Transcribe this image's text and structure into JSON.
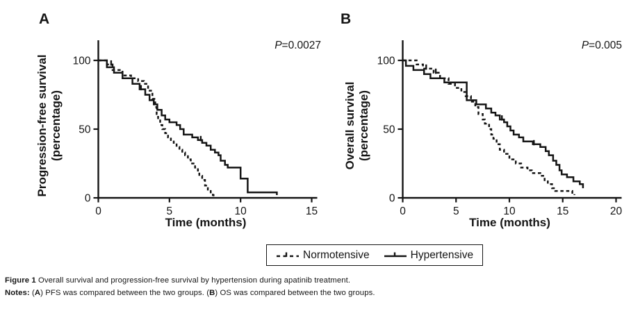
{
  "figure": {
    "panels": [
      {
        "label": "A"
      },
      {
        "label": "B"
      }
    ]
  },
  "chart_data": [
    {
      "type": "line",
      "subtype": "kaplan-meier-step",
      "panel_label": "A",
      "pvalue": {
        "prefix": "P",
        "value": "=0.0027"
      },
      "xlabel": "Time (months)",
      "ylabel_lines": [
        "Progression-free survival",
        "(percentage)"
      ],
      "xlim": [
        0,
        15
      ],
      "ylim": [
        0,
        100
      ],
      "xticks": [
        0,
        5,
        10,
        15
      ],
      "yticks": [
        0,
        50,
        100
      ],
      "grid": false,
      "series": [
        {
          "name": "Normotensive",
          "style": "dashed",
          "points": [
            [
              0,
              100
            ],
            [
              0.6,
              97
            ],
            [
              1.0,
              93
            ],
            [
              1.7,
              89
            ],
            [
              2.3,
              87
            ],
            [
              2.8,
              85
            ],
            [
              3.2,
              83
            ],
            [
              3.5,
              78
            ],
            [
              3.8,
              72
            ],
            [
              4.0,
              66
            ],
            [
              4.1,
              61
            ],
            [
              4.2,
              57
            ],
            [
              4.35,
              53
            ],
            [
              4.5,
              50
            ],
            [
              4.7,
              47
            ],
            [
              4.9,
              44
            ],
            [
              5.1,
              42
            ],
            [
              5.3,
              40
            ],
            [
              5.5,
              37
            ],
            [
              5.7,
              35
            ],
            [
              5.9,
              33
            ],
            [
              6.1,
              31
            ],
            [
              6.3,
              28
            ],
            [
              6.5,
              25
            ],
            [
              6.8,
              22
            ],
            [
              7.0,
              19
            ],
            [
              7.1,
              16
            ],
            [
              7.3,
              13
            ],
            [
              7.5,
              9
            ],
            [
              7.7,
              6
            ],
            [
              7.9,
              4
            ],
            [
              8.05,
              2
            ],
            [
              8.1,
              0
            ]
          ],
          "censor_ticks": [
            0.9
          ]
        },
        {
          "name": "Hypertensive",
          "style": "solid",
          "points": [
            [
              0,
              100
            ],
            [
              0.6,
              95
            ],
            [
              1.1,
              91
            ],
            [
              1.7,
              87
            ],
            [
              2.4,
              83
            ],
            [
              2.9,
              79
            ],
            [
              3.3,
              75
            ],
            [
              3.6,
              71
            ],
            [
              3.9,
              68
            ],
            [
              4.15,
              64
            ],
            [
              4.45,
              60
            ],
            [
              4.7,
              57
            ],
            [
              5.0,
              55
            ],
            [
              5.5,
              53
            ],
            [
              5.75,
              50
            ],
            [
              6.0,
              46
            ],
            [
              6.6,
              44
            ],
            [
              7.0,
              42
            ],
            [
              7.3,
              40
            ],
            [
              7.6,
              38
            ],
            [
              7.9,
              35
            ],
            [
              8.2,
              33
            ],
            [
              8.45,
              31
            ],
            [
              8.6,
              27
            ],
            [
              8.9,
              24
            ],
            [
              9.1,
              22
            ],
            [
              10.0,
              14
            ],
            [
              10.5,
              4
            ],
            [
              12.55,
              2
            ]
          ],
          "censor_ticks": [
            3.0,
            7.2
          ]
        }
      ]
    },
    {
      "type": "line",
      "subtype": "kaplan-meier-step",
      "panel_label": "B",
      "pvalue": {
        "prefix": "P",
        "value": "=0.005"
      },
      "xlabel": "Time (months)",
      "ylabel_lines": [
        "Overall survival",
        "(percentage)"
      ],
      "xlim": [
        0,
        20
      ],
      "ylim": [
        0,
        100
      ],
      "xticks": [
        0,
        5,
        10,
        15,
        20
      ],
      "yticks": [
        0,
        50,
        100
      ],
      "grid": false,
      "series": [
        {
          "name": "Normotensive",
          "style": "dashed",
          "points": [
            [
              0,
              100
            ],
            [
              1.3,
              97
            ],
            [
              1.9,
              94
            ],
            [
              2.9,
              91
            ],
            [
              3.5,
              87
            ],
            [
              4.3,
              83
            ],
            [
              4.9,
              80
            ],
            [
              5.5,
              77
            ],
            [
              5.9,
              74
            ],
            [
              6.4,
              70
            ],
            [
              6.8,
              66
            ],
            [
              7.1,
              61
            ],
            [
              7.5,
              57
            ],
            [
              7.7,
              54
            ],
            [
              8.1,
              50
            ],
            [
              8.3,
              46
            ],
            [
              8.5,
              43
            ],
            [
              8.8,
              39
            ],
            [
              9.1,
              35
            ],
            [
              9.5,
              32
            ],
            [
              10.0,
              28
            ],
            [
              10.6,
              25
            ],
            [
              11.1,
              22
            ],
            [
              11.7,
              20
            ],
            [
              12.1,
              18
            ],
            [
              12.9,
              16
            ],
            [
              13.3,
              12
            ],
            [
              13.6,
              10
            ],
            [
              14.0,
              7
            ],
            [
              14.3,
              5
            ],
            [
              15.9,
              3
            ],
            [
              16.1,
              2
            ]
          ],
          "censor_ticks": [
            2.2,
            3.1
          ]
        },
        {
          "name": "Hypertensive",
          "style": "solid",
          "points": [
            [
              0,
              100
            ],
            [
              0.3,
              96
            ],
            [
              1.0,
              93
            ],
            [
              2.0,
              90
            ],
            [
              2.6,
              87
            ],
            [
              3.9,
              84
            ],
            [
              6.0,
              71
            ],
            [
              6.9,
              68
            ],
            [
              7.8,
              65
            ],
            [
              8.3,
              62
            ],
            [
              8.7,
              60
            ],
            [
              9.1,
              57
            ],
            [
              9.5,
              55
            ],
            [
              9.8,
              52
            ],
            [
              10.1,
              49
            ],
            [
              10.4,
              46
            ],
            [
              10.9,
              44
            ],
            [
              11.3,
              41
            ],
            [
              12.2,
              39
            ],
            [
              12.9,
              37
            ],
            [
              13.4,
              34
            ],
            [
              13.7,
              31
            ],
            [
              14.1,
              27
            ],
            [
              14.4,
              24
            ],
            [
              14.7,
              20
            ],
            [
              14.9,
              17
            ],
            [
              15.4,
              15
            ],
            [
              16.0,
              12
            ],
            [
              16.6,
              10
            ],
            [
              16.9,
              7
            ]
          ],
          "censor_ticks": [
            9.3,
            12.3
          ]
        }
      ]
    }
  ],
  "legend": {
    "items": [
      {
        "label": "Normotensive",
        "style": "dashed"
      },
      {
        "label": "Hypertensive",
        "style": "solid"
      }
    ]
  },
  "caption": {
    "figure_label": "Figure 1",
    "figure_text": " Overall survival and progression-free survival by hypertension during apatinib treatment.",
    "notes_label": "Notes:",
    "notes_seg1": " (",
    "notes_bold_a": "A",
    "notes_seg2": ") PFS was compared between the two groups. (",
    "notes_bold_b": "B",
    "notes_seg3": ") OS was compared between the two groups."
  },
  "colors": {
    "line": "#141414",
    "background": "#ffffff"
  }
}
